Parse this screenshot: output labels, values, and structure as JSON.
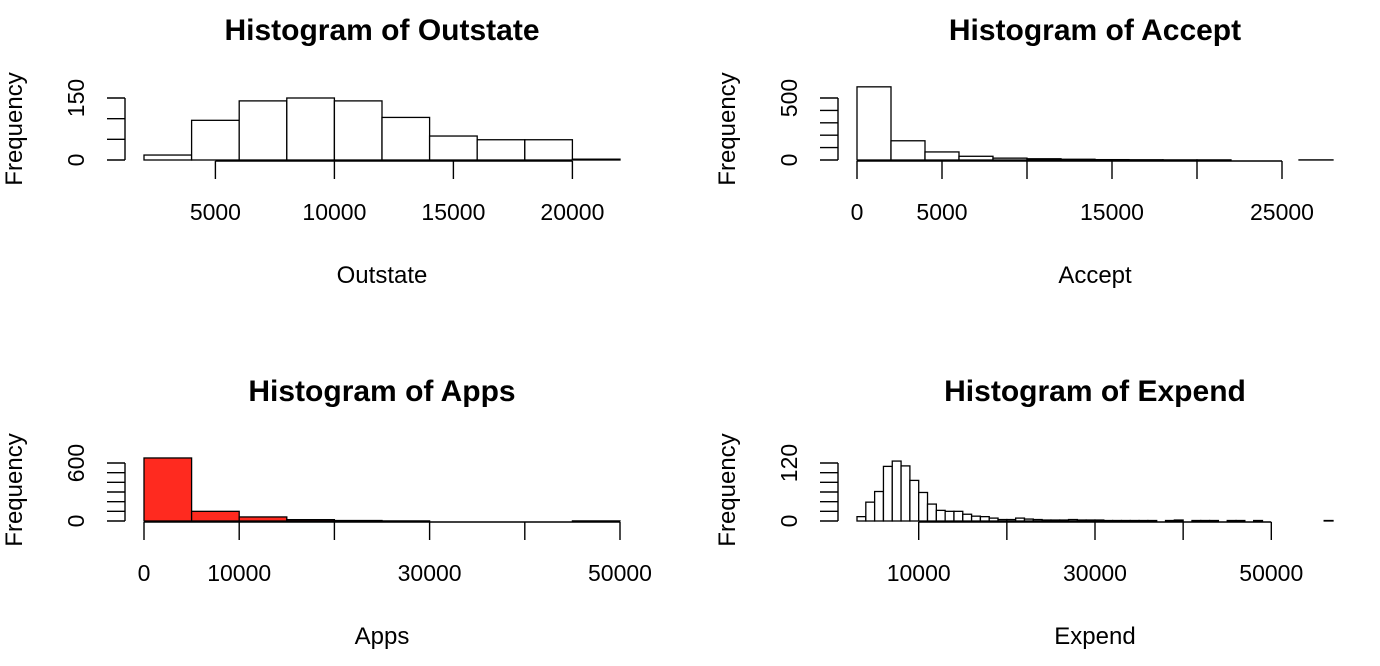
{
  "chart_data": [
    {
      "type": "bar",
      "title": "Histogram of Outstate",
      "xlabel": "Outstate",
      "ylabel": "Frequency",
      "fill_color": "#ffffff",
      "bin_edges": [
        2000,
        4000,
        6000,
        8000,
        10000,
        12000,
        14000,
        16000,
        18000,
        20000,
        22000
      ],
      "values": [
        12,
        96,
        143,
        150,
        143,
        103,
        58,
        49,
        49,
        2
      ],
      "xlim": [
        2000,
        22000
      ],
      "ylim": [
        0,
        150
      ],
      "x_ticks": [
        5000,
        10000,
        15000,
        20000
      ],
      "x_tick_labels": [
        "5000",
        "10000",
        "15000",
        "20000"
      ],
      "y_ticks": [
        0,
        50,
        100,
        150
      ],
      "y_tick_labels": [
        "0",
        "",
        "",
        "150"
      ]
    },
    {
      "type": "bar",
      "title": "Histogram of Accept",
      "xlabel": "Accept",
      "ylabel": "Frequency",
      "fill_color": "#ffffff",
      "bin_edges": [
        0,
        2000,
        4000,
        6000,
        8000,
        10000,
        12000,
        14000,
        16000,
        18000,
        20000,
        22000,
        24000,
        26000,
        28000
      ],
      "values": [
        590,
        155,
        65,
        30,
        15,
        10,
        6,
        3,
        2,
        1,
        1,
        0,
        0,
        1
      ],
      "xlim": [
        0,
        28000
      ],
      "ylim": [
        0,
        500
      ],
      "x_ticks": [
        0,
        5000,
        10000,
        15000,
        20000,
        25000
      ],
      "x_tick_labels": [
        "0",
        "5000",
        "",
        "15000",
        "",
        "25000"
      ],
      "y_ticks": [
        0,
        100,
        200,
        300,
        400,
        500
      ],
      "y_tick_labels": [
        "0",
        "",
        "",
        "",
        "",
        "500"
      ]
    },
    {
      "type": "bar",
      "title": "Histogram of Apps",
      "xlabel": "Apps",
      "ylabel": "Frequency",
      "fill_color": "#ff2a1f",
      "bin_edges": [
        0,
        5000,
        10000,
        15000,
        20000,
        25000,
        30000,
        35000,
        40000,
        45000,
        50000
      ],
      "values": [
        652,
        100,
        42,
        14,
        5,
        1,
        0,
        0,
        0,
        1
      ],
      "xlim": [
        0,
        50000
      ],
      "ylim": [
        0,
        600
      ],
      "x_ticks": [
        0,
        10000,
        20000,
        30000,
        40000,
        50000
      ],
      "x_tick_labels": [
        "0",
        "10000",
        "",
        "30000",
        "",
        "50000"
      ],
      "y_ticks": [
        0,
        100,
        200,
        300,
        400,
        500,
        600
      ],
      "y_tick_labels": [
        "0",
        "",
        "",
        "",
        "",
        "",
        "600"
      ]
    },
    {
      "type": "bar",
      "title": "Histogram of Expend",
      "xlabel": "Expend",
      "ylabel": "Frequency",
      "fill_color": "#ffffff",
      "bin_edges": [
        3000,
        4000,
        5000,
        6000,
        7000,
        8000,
        9000,
        10000,
        11000,
        12000,
        13000,
        14000,
        15000,
        16000,
        17000,
        18000,
        19000,
        20000,
        21000,
        22000,
        23000,
        24000,
        25000,
        26000,
        27000,
        28000,
        29000,
        30000,
        31000,
        32000,
        33000,
        34000,
        35000,
        36000,
        37000,
        38000,
        39000,
        40000,
        41000,
        42000,
        43000,
        44000,
        45000,
        46000,
        47000,
        48000,
        49000,
        50000,
        51000,
        52000,
        53000,
        54000,
        55000,
        56000,
        57000
      ],
      "values": [
        9,
        39,
        61,
        113,
        124,
        114,
        84,
        59,
        35,
        22,
        20,
        20,
        14,
        10,
        9,
        6,
        3,
        3,
        6,
        4,
        3,
        2,
        2,
        2,
        3,
        2,
        2,
        2,
        1,
        1,
        1,
        1,
        1,
        1,
        0,
        1,
        2,
        0,
        1,
        1,
        1,
        0,
        1,
        1,
        0,
        1,
        0,
        0,
        0,
        0,
        0,
        0,
        0,
        1
      ],
      "xlim": [
        3000,
        57000
      ],
      "ylim": [
        0,
        120
      ],
      "x_ticks": [
        10000,
        20000,
        30000,
        40000,
        50000
      ],
      "x_tick_labels": [
        "10000",
        "",
        "30000",
        "",
        "50000"
      ],
      "y_ticks": [
        0,
        20,
        40,
        60,
        80,
        100,
        120
      ],
      "y_tick_labels": [
        "0",
        "",
        "",
        "",
        "",
        "",
        "120"
      ]
    }
  ]
}
